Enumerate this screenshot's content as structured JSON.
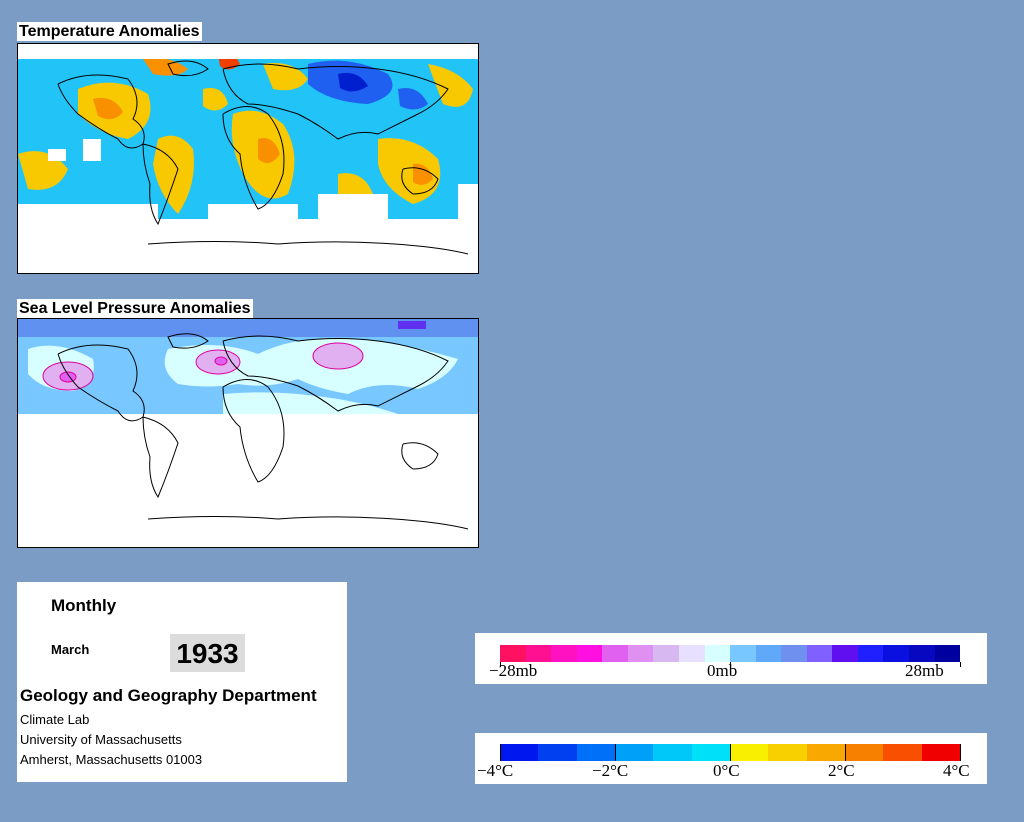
{
  "maps": {
    "temperature": {
      "title": "Temperature Anomalies"
    },
    "pressure": {
      "title": "Sea Level Pressure Anomalies"
    }
  },
  "info": {
    "period": "Monthly",
    "month": "March",
    "year": "1933",
    "department": "Geology and Geography Department",
    "lines": [
      "Climate Lab",
      "University of Massachusetts",
      "Amherst, Massachusetts 01003"
    ]
  },
  "legend_pressure": {
    "labels": [
      "−28mb",
      "0mb",
      "28mb"
    ],
    "colors": [
      "#ff1060",
      "#ff1090",
      "#ff10c0",
      "#ff10e0",
      "#e060f0",
      "#e090f0",
      "#d8b8f0",
      "#e8e0ff",
      "#d8ffff",
      "#78c8ff",
      "#60a8f8",
      "#7090f0",
      "#8060ff",
      "#6010f0",
      "#2020ff",
      "#0a10e0",
      "#0808c0",
      "#0000a0"
    ]
  },
  "legend_temperature": {
    "labels": [
      "−4°C",
      "−2°C",
      "0°C",
      "2°C",
      "4°C"
    ],
    "colors": [
      "#0018f0",
      "#0040f0",
      "#0070f8",
      "#00a0f8",
      "#00c8f8",
      "#00e0f8",
      "#f8f000",
      "#f8d000",
      "#f8a800",
      "#f88000",
      "#f85000",
      "#f00000"
    ]
  },
  "colors": {
    "background": "#7b9cc4",
    "cold": "#22c4f8",
    "warm": "#f8c000",
    "slp_low": "#d8ffff",
    "slp_mid": "#78c8ff",
    "slp_high": "#e090f0"
  }
}
